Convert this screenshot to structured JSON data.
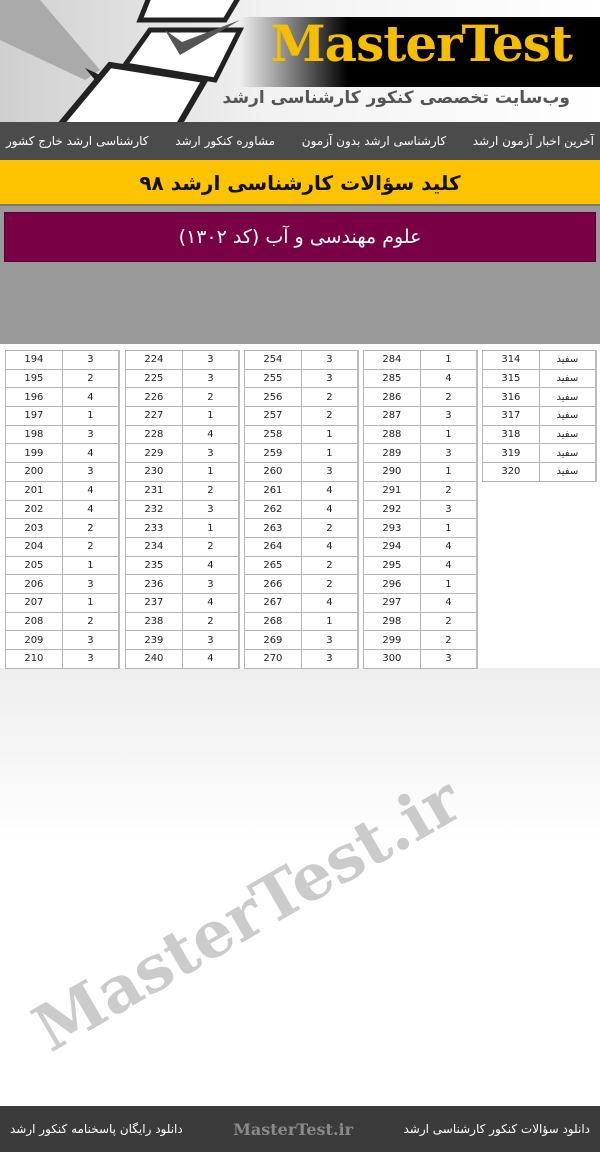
{
  "header": {
    "logo": "MasterTest",
    "tagline": "وب‌سایت تخصصی کنکور کارشناسی ارشد"
  },
  "nav": [
    "آخرین اخبار آزمون ارشد",
    "کارشناسی ارشد بدون آزمون",
    "مشاوره کنکور ارشد",
    "کارشناسی ارشد خارج کشور"
  ],
  "banner": {
    "title": "کلید سؤالات کارشناسی ارشد ۹۸",
    "subject": "علوم مهندسی و آب (کد ۱۳۰۲)"
  },
  "answer_key": [
    {
      "start": 194,
      "answers": [
        "3",
        "2",
        "4",
        "1",
        "3",
        "4",
        "3",
        "4",
        "4",
        "2",
        "2",
        "1",
        "3",
        "1",
        "2",
        "3",
        "3"
      ]
    },
    {
      "start": 224,
      "answers": [
        "3",
        "3",
        "2",
        "1",
        "4",
        "3",
        "1",
        "2",
        "3",
        "1",
        "2",
        "4",
        "3",
        "4",
        "2",
        "3",
        "4"
      ]
    },
    {
      "start": 254,
      "answers": [
        "3",
        "3",
        "2",
        "2",
        "1",
        "1",
        "3",
        "4",
        "4",
        "2",
        "4",
        "2",
        "2",
        "4",
        "1",
        "3",
        "3"
      ]
    },
    {
      "start": 284,
      "answers": [
        "1",
        "4",
        "2",
        "3",
        "1",
        "3",
        "1",
        "2",
        "3",
        "1",
        "4",
        "4",
        "1",
        "4",
        "2",
        "2",
        "3"
      ]
    },
    {
      "start": 314,
      "answers": [
        "سفید",
        "سفید",
        "سفید",
        "سفید",
        "سفید",
        "سفید",
        "سفید"
      ]
    }
  ],
  "watermark": "MasterTest.ir",
  "footer": {
    "left_link": "دانلود سؤالات کنکور کارشناسی ارشد",
    "brand": "MasterTest.ir",
    "right_link": "دانلود رایگان پاسخنامه کنکور ارشد"
  },
  "colors": {
    "accent_yellow": "#fdc300",
    "maroon": "#7a0046",
    "nav_bg": "#4b4b4b",
    "footer_bg": "#3b3b3b"
  }
}
